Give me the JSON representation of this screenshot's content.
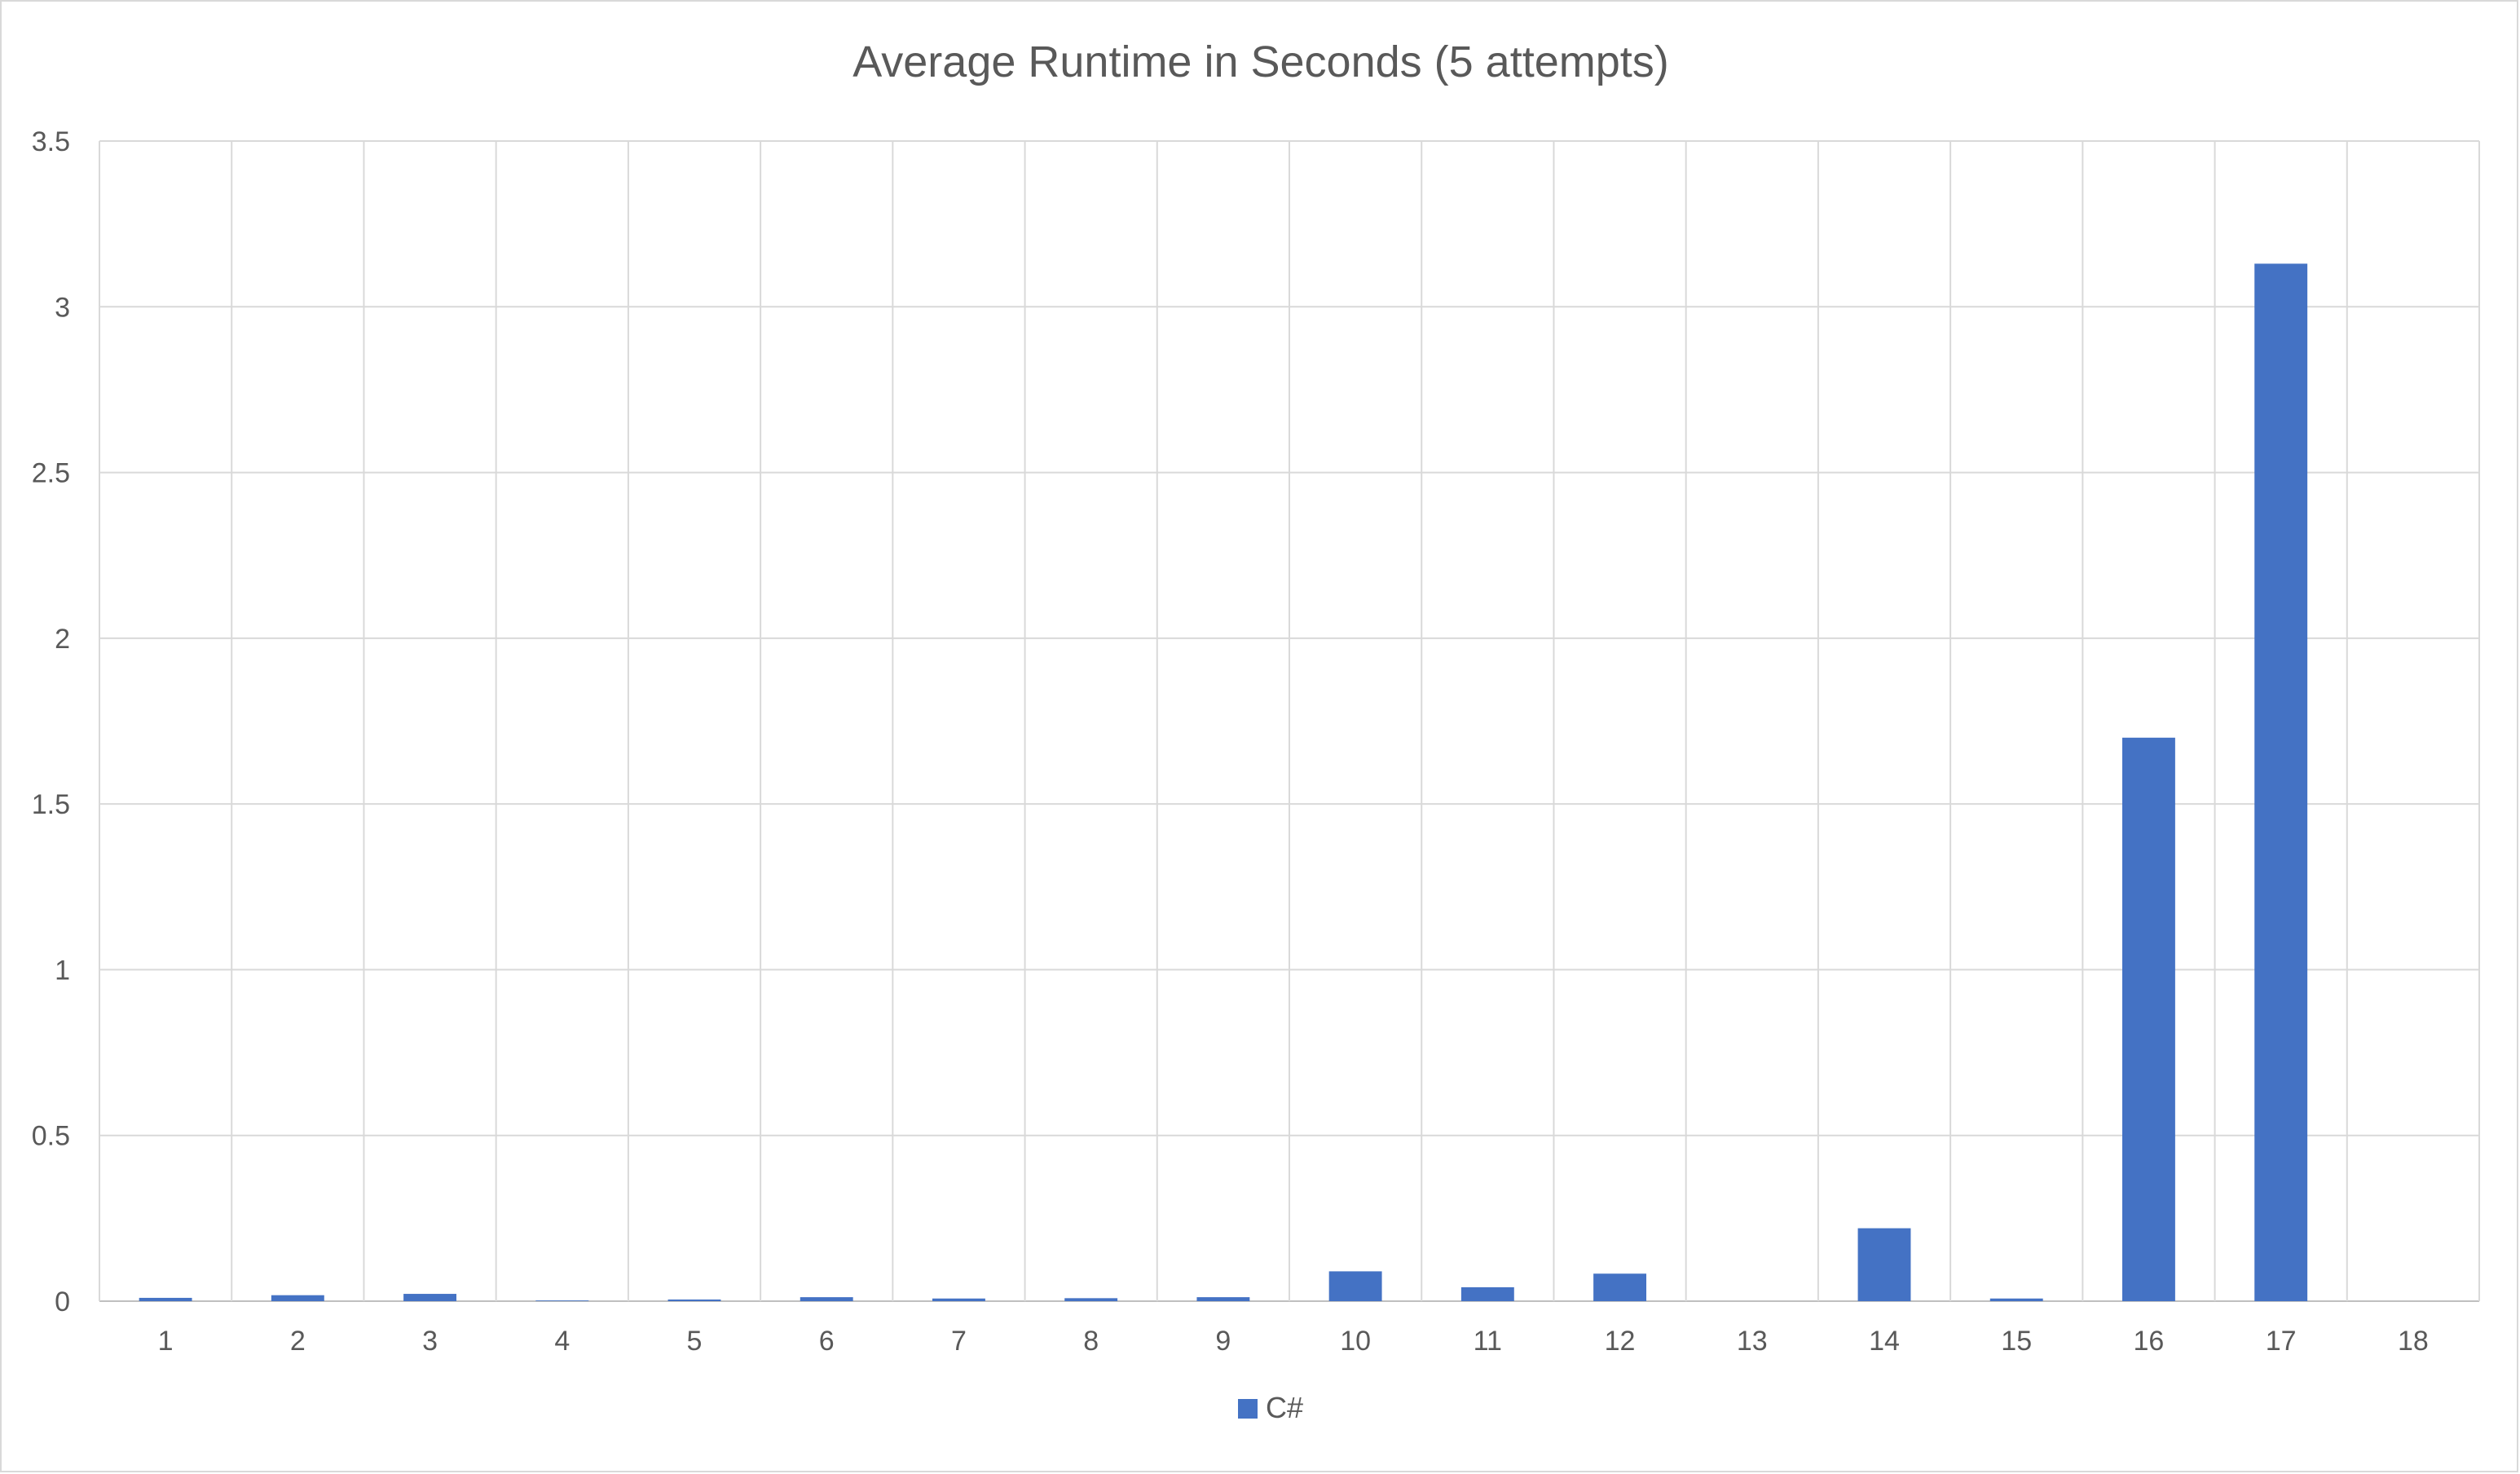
{
  "chart_data": {
    "type": "bar",
    "title": "Average Runtime in Seconds (5 attempts)",
    "xlabel": "",
    "ylabel": "",
    "categories": [
      "1",
      "2",
      "3",
      "4",
      "5",
      "6",
      "7",
      "8",
      "9",
      "10",
      "11",
      "12",
      "13",
      "14",
      "15",
      "16",
      "17",
      "18"
    ],
    "series": [
      {
        "name": "C#",
        "color": "#4472c4",
        "values": [
          0.01,
          0.018,
          0.022,
          0.002,
          0.005,
          0.012,
          0.008,
          0.009,
          0.012,
          0.09,
          0.042,
          0.083,
          0.0,
          0.22,
          0.008,
          1.7,
          3.13,
          0.0
        ]
      }
    ],
    "ylim": [
      0,
      3.5
    ],
    "yticks": [
      0,
      0.5,
      1,
      1.5,
      2,
      2.5,
      3,
      3.5
    ],
    "ytick_labels": [
      "0",
      "0.5",
      "1",
      "1.5",
      "2",
      "2.5",
      "3",
      "3.5"
    ],
    "grid": {
      "horizontal": true,
      "vertical": true,
      "color": "#d9d9d9"
    },
    "legend": {
      "position": "bottom",
      "entries": [
        "C#"
      ]
    }
  }
}
